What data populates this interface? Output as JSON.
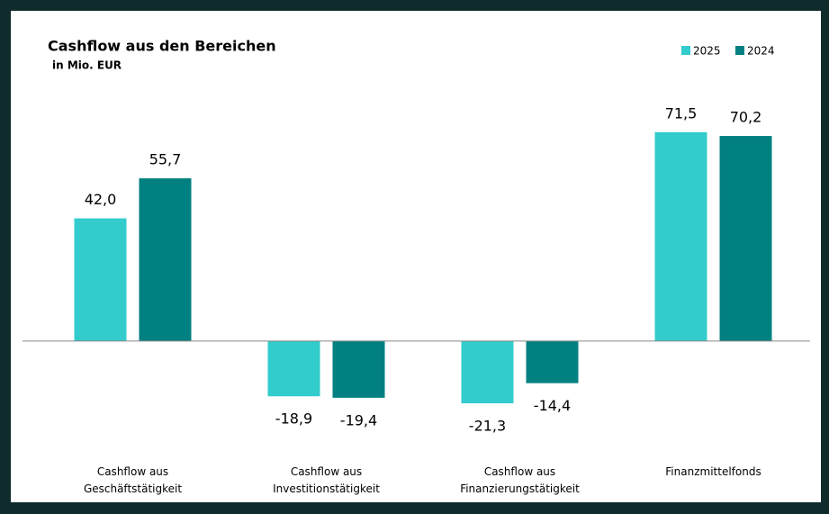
{
  "chart_data": {
    "type": "bar",
    "title": "Cashflow aus den Bereichen",
    "subtitle": "in Mio. EUR",
    "categories": [
      "Cashflow aus\nGeschäftstätigkeit",
      "Cashflow aus\nInvestitionstätigkeit",
      "Cashflow aus\nFinanzierungstätigkeit",
      "Finanzmittelfonds"
    ],
    "series": [
      {
        "name": "2025",
        "color": "#33cccc",
        "values": [
          42.0,
          -18.9,
          -21.3,
          71.5
        ],
        "value_labels": [
          "42,0",
          "-18,9",
          "-21,3",
          "71,5"
        ]
      },
      {
        "name": "2024",
        "color": "#008080",
        "values": [
          55.7,
          -19.4,
          -14.4,
          70.2
        ],
        "value_labels": [
          "55,7",
          "-19,4",
          "-14,4",
          "70,2"
        ]
      }
    ],
    "ylim": [
      -37,
      85
    ],
    "legend": "top-right"
  }
}
